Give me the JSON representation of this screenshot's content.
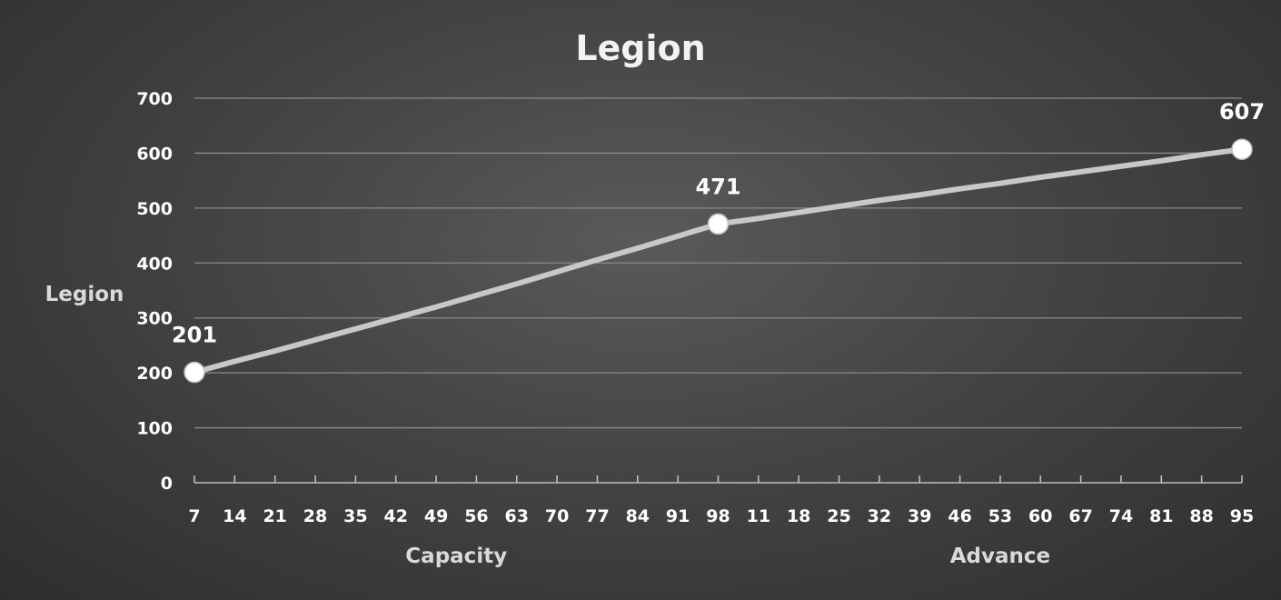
{
  "chart_data": {
    "type": "line",
    "title": "Legion",
    "xlabel": "",
    "ylabel": "Legion",
    "ylim": [
      0,
      700
    ],
    "yticks": [
      0,
      100,
      200,
      300,
      400,
      500,
      600,
      700
    ],
    "grid": true,
    "legend": "none",
    "series_color": "#c8c8c8",
    "x_tick_labels": [
      "7",
      "14",
      "21",
      "28",
      "35",
      "42",
      "49",
      "56",
      "63",
      "70",
      "77",
      "84",
      "91",
      "98",
      "11",
      "18",
      "25",
      "32",
      "39",
      "46",
      "53",
      "60",
      "67",
      "74",
      "81",
      "88",
      "95"
    ],
    "category_groups": [
      {
        "label": "Capacity",
        "from_tick": 0,
        "to_tick": 13
      },
      {
        "label": "Advance",
        "from_tick": 14,
        "to_tick": 26
      }
    ],
    "series": [
      {
        "values": [
          201,
          221,
          240,
          260,
          280,
          300,
          320,
          341,
          362,
          384,
          406,
          427,
          449,
          471,
          481,
          492,
          503,
          514,
          524,
          535,
          545,
          556,
          566,
          576,
          586,
          597,
          607
        ]
      }
    ],
    "data_labels": [
      {
        "index": 0,
        "text": "201"
      },
      {
        "index": 13,
        "text": "471"
      },
      {
        "index": 26,
        "text": "607"
      }
    ]
  }
}
